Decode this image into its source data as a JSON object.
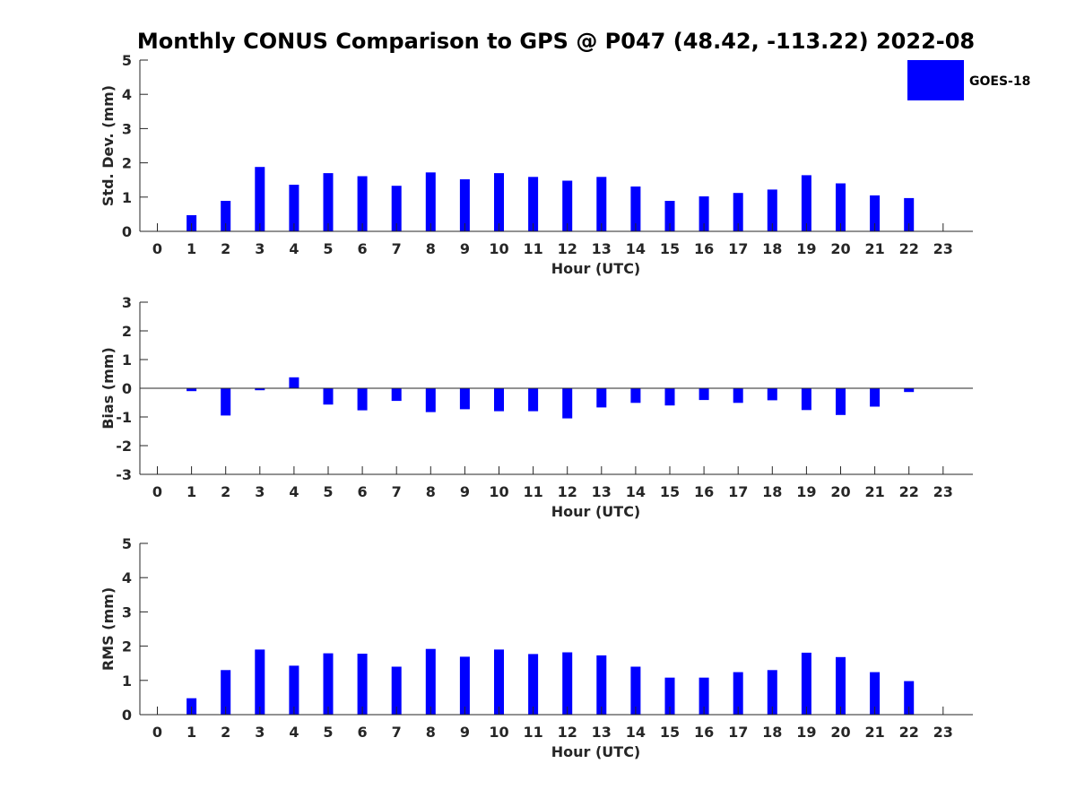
{
  "title": "Monthly CONUS Comparison to GPS @ P047 (48.42, -113.22) 2022-08",
  "legend": {
    "label": "GOES-18",
    "color": "#0000ff"
  },
  "chart_data": [
    {
      "type": "bar",
      "ylabel": "Std. Dev. (mm)",
      "xlabel": "Hour (UTC)",
      "ylim": [
        0,
        5
      ],
      "yticks": [
        0,
        1,
        2,
        3,
        4,
        5
      ],
      "categories": [
        "0",
        "1",
        "2",
        "3",
        "4",
        "5",
        "6",
        "7",
        "8",
        "9",
        "10",
        "11",
        "12",
        "13",
        "14",
        "15",
        "16",
        "17",
        "18",
        "19",
        "20",
        "21",
        "22",
        "23"
      ],
      "series": [
        {
          "name": "GOES-18",
          "color": "#0000ff",
          "values": [
            null,
            0.47,
            0.89,
            1.88,
            1.36,
            1.7,
            1.61,
            1.33,
            1.72,
            1.52,
            1.7,
            1.59,
            1.48,
            1.59,
            1.31,
            0.89,
            1.02,
            1.12,
            1.22,
            1.64,
            1.4,
            1.05,
            0.97,
            null
          ]
        }
      ]
    },
    {
      "type": "bar",
      "ylabel": "Bias (mm)",
      "xlabel": "Hour (UTC)",
      "ylim": [
        -3,
        3
      ],
      "yticks": [
        -3,
        -2,
        -1,
        0,
        1,
        2,
        3
      ],
      "zero_line": true,
      "categories": [
        "0",
        "1",
        "2",
        "3",
        "4",
        "5",
        "6",
        "7",
        "8",
        "9",
        "10",
        "11",
        "12",
        "13",
        "14",
        "15",
        "16",
        "17",
        "18",
        "19",
        "20",
        "21",
        "22",
        "23"
      ],
      "series": [
        {
          "name": "GOES-18",
          "color": "#0000ff",
          "values": [
            null,
            -0.1,
            -0.95,
            -0.07,
            0.38,
            -0.57,
            -0.77,
            -0.44,
            -0.83,
            -0.73,
            -0.8,
            -0.8,
            -1.05,
            -0.67,
            -0.51,
            -0.6,
            -0.41,
            -0.51,
            -0.42,
            -0.76,
            -0.93,
            -0.64,
            -0.13,
            null
          ]
        }
      ]
    },
    {
      "type": "bar",
      "ylabel": "RMS (mm)",
      "xlabel": "Hour (UTC)",
      "ylim": [
        0,
        5
      ],
      "yticks": [
        0,
        1,
        2,
        3,
        4,
        5
      ],
      "categories": [
        "0",
        "1",
        "2",
        "3",
        "4",
        "5",
        "6",
        "7",
        "8",
        "9",
        "10",
        "11",
        "12",
        "13",
        "14",
        "15",
        "16",
        "17",
        "18",
        "19",
        "20",
        "21",
        "22",
        "23"
      ],
      "series": [
        {
          "name": "GOES-18",
          "color": "#0000ff",
          "values": [
            null,
            0.48,
            1.3,
            1.9,
            1.43,
            1.79,
            1.78,
            1.4,
            1.92,
            1.69,
            1.9,
            1.77,
            1.82,
            1.73,
            1.4,
            1.08,
            1.08,
            1.24,
            1.3,
            1.81,
            1.68,
            1.24,
            0.98,
            null
          ]
        }
      ]
    }
  ]
}
